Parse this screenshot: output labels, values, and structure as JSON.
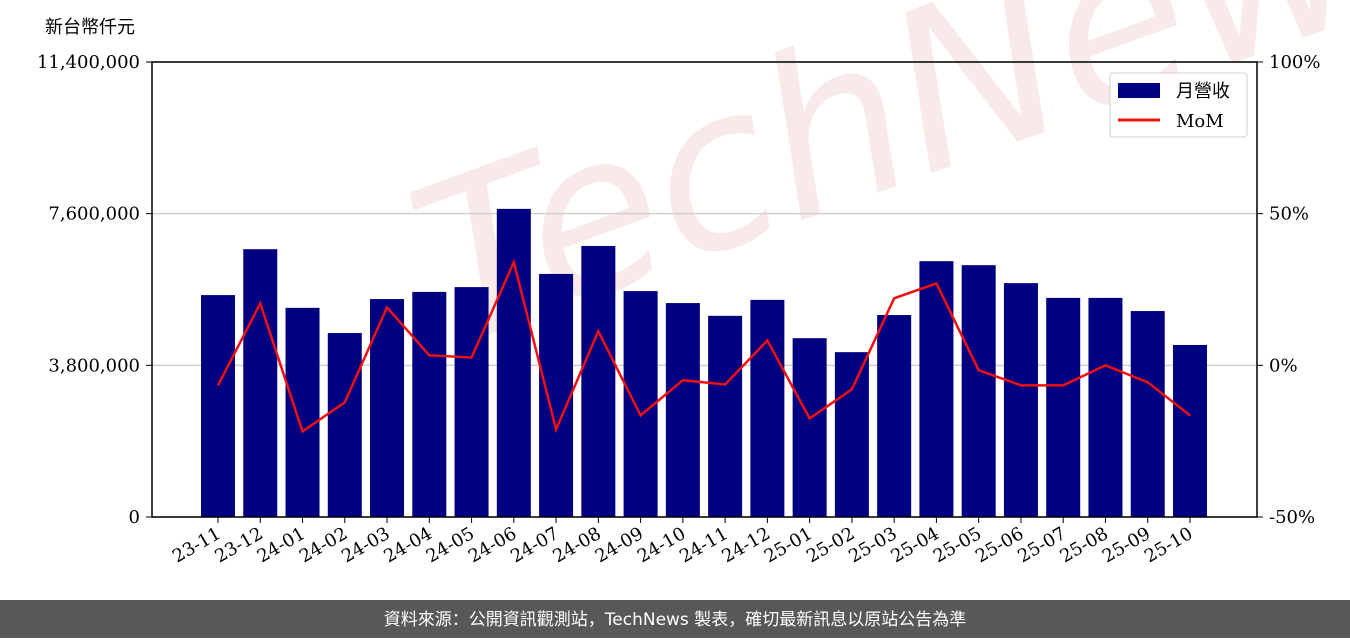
{
  "chart_data": {
    "type": "bar_line",
    "y_label": "新台幣仟元",
    "watermark": "TechNews",
    "footer": "資料來源：公開資訊觀測站，TechNews 製表，確切最新訊息以原站公告為準",
    "categories": [
      "23-11",
      "23-12",
      "24-01",
      "24-02",
      "24-03",
      "24-04",
      "24-05",
      "24-06",
      "24-07",
      "24-08",
      "24-09",
      "24-10",
      "24-11",
      "24-12",
      "25-01",
      "25-02",
      "25-03",
      "25-04",
      "25-05",
      "25-06",
      "25-07",
      "25-08",
      "25-09",
      "25-10"
    ],
    "series": [
      {
        "name": "月營收",
        "color": "#000080",
        "type": "bar",
        "values": [
          5560000,
          6710000,
          5240000,
          4610000,
          5460000,
          5640000,
          5760000,
          7720000,
          6090000,
          6790000,
          5660000,
          5360000,
          5040000,
          5440000,
          4480000,
          4130000,
          5060000,
          6410000,
          6310000,
          5860000,
          5490000,
          5490000,
          5160000,
          4310000
        ]
      },
      {
        "name": "MoM",
        "color": "#ee1111",
        "type": "line",
        "axis": "y2",
        "values": [
          -6.6,
          20.4,
          -21.8,
          -12.2,
          19.1,
          3.3,
          2.6,
          34,
          -21.1,
          11.2,
          -16.5,
          -4.9,
          -6.3,
          8.2,
          -17.5,
          -7.9,
          22.1,
          27.0,
          -1.6,
          -6.6,
          -6.6,
          0,
          -5.6,
          -16.5
        ]
      }
    ],
    "ylim": [
      0,
      11400000
    ],
    "yticks": [
      0,
      {
        "value": 3800000,
        "label": "3,800,000"
      },
      {
        "value": 7600000,
        "label": "7,600,000"
      },
      {
        "value": 11400000,
        "label": "11,400,000"
      }
    ],
    "y2lim": [
      -50,
      100
    ],
    "y2ticks": [
      {
        "value": -50,
        "label": "-50%"
      },
      {
        "value": 0,
        "label": "0%"
      },
      {
        "value": 50,
        "label": "50%"
      },
      {
        "value": 100,
        "label": "100%"
      }
    ],
    "grid": true,
    "legend": "upper right"
  }
}
